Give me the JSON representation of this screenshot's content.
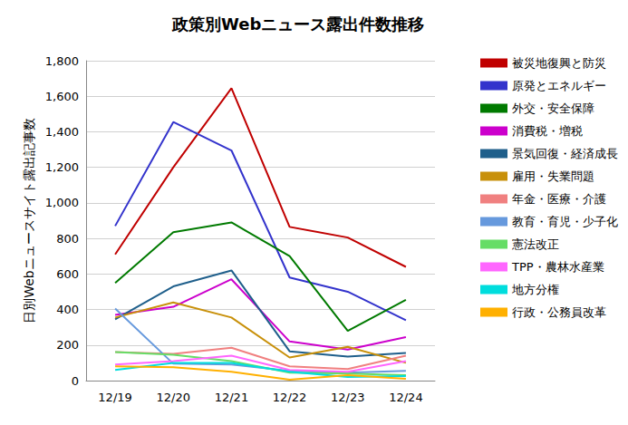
{
  "chart_data": {
    "type": "line",
    "title": "政策別Webニュース露出件数推移",
    "y_label": "日別Webニュースサイト露出記事数",
    "categories": [
      "12/19",
      "12/20",
      "12/21",
      "12/22",
      "12/23",
      "12/24"
    ],
    "ylim": [
      0,
      1800
    ],
    "yticks": [
      0,
      200,
      400,
      600,
      800,
      1000,
      1200,
      1400,
      1600,
      1800
    ],
    "grid": true,
    "legend": "right",
    "marker": "none",
    "series": [
      {
        "name": "被災地復興と防災",
        "color": "#c00000",
        "values": [
          710,
          1200,
          1645,
          865,
          805,
          640
        ]
      },
      {
        "name": "原発とエネルギー",
        "color": "#3333cc",
        "values": [
          870,
          1455,
          1295,
          580,
          500,
          340
        ]
      },
      {
        "name": "外交・安全保障",
        "color": "#007a00",
        "values": [
          550,
          835,
          890,
          700,
          280,
          455
        ]
      },
      {
        "name": "消費税・増税",
        "color": "#cc00cc",
        "values": [
          370,
          415,
          570,
          220,
          175,
          245
        ]
      },
      {
        "name": "景気回復・経済成長",
        "color": "#1f5f8b",
        "values": [
          345,
          530,
          620,
          165,
          135,
          155
        ]
      },
      {
        "name": "雇用・失業問題",
        "color": "#c8900a",
        "values": [
          355,
          440,
          355,
          130,
          190,
          100
        ]
      },
      {
        "name": "年金・医療・介護",
        "color": "#f08080",
        "values": [
          160,
          150,
          185,
          80,
          65,
          140
        ]
      },
      {
        "name": "教育・育児・少子化",
        "color": "#6699dd",
        "values": [
          405,
          95,
          90,
          55,
          45,
          55
        ]
      },
      {
        "name": "憲法改正",
        "color": "#66dd66",
        "values": [
          160,
          145,
          110,
          45,
          40,
          30
        ]
      },
      {
        "name": "TPP・農林水産業",
        "color": "#ff66ff",
        "values": [
          90,
          110,
          140,
          60,
          50,
          110
        ]
      },
      {
        "name": "地方分権",
        "color": "#00dddd",
        "values": [
          60,
          100,
          100,
          50,
          20,
          25
        ]
      },
      {
        "name": "行政・公務員改革",
        "color": "#ffb000",
        "values": [
          80,
          75,
          50,
          5,
          30,
          10
        ]
      }
    ]
  }
}
